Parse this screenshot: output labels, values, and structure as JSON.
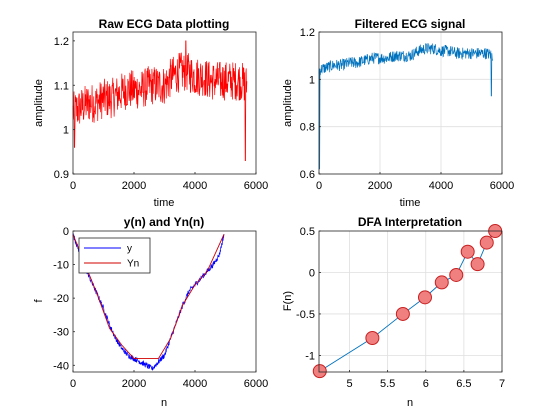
{
  "chart_data": [
    {
      "type": "line",
      "title": "Raw ECG Data plotting",
      "xlabel": "time",
      "ylabel": "amplitude",
      "xlim": [
        0,
        6000
      ],
      "ylim": [
        0.9,
        1.22
      ],
      "xticks": [
        0,
        2000,
        4000,
        6000
      ],
      "yticks": [
        0.9,
        1,
        1.1,
        1.2
      ],
      "ytick_labels": [
        "0.9",
        "1",
        "1.1",
        "1.2"
      ],
      "grid": false,
      "color": "#ff0000",
      "series": [
        {
          "x": [
            0,
            250,
            500,
            750,
            1000,
            1250,
            1500,
            1750,
            2000,
            2250,
            2500,
            2750,
            3000,
            3250,
            3500,
            3750,
            4000,
            4250,
            4500,
            4750,
            5000,
            5250,
            5500,
            5700
          ],
          "values": [
            1.04,
            1.05,
            1.06,
            1.06,
            1.07,
            1.07,
            1.08,
            1.09,
            1.09,
            1.09,
            1.1,
            1.1,
            1.1,
            1.12,
            1.13,
            1.13,
            1.12,
            1.12,
            1.11,
            1.11,
            1.11,
            1.11,
            1.11,
            1.1
          ],
          "noise": 0.045
        }
      ],
      "spikes": [
        {
          "x": 50,
          "y": 0.96
        },
        {
          "x": 3700,
          "y": 1.2
        },
        {
          "x": 5650,
          "y": 0.93
        }
      ]
    },
    {
      "type": "line",
      "title": "Filtered ECG signal",
      "xlabel": "time",
      "ylabel": "amplitude",
      "xlim": [
        0,
        6000
      ],
      "ylim": [
        0.6,
        1.2
      ],
      "xticks": [
        0,
        2000,
        4000,
        6000
      ],
      "yticks": [
        0.6,
        0.8,
        1,
        1.2
      ],
      "ytick_labels": [
        "0.6",
        "0.8",
        "1",
        "1.2"
      ],
      "grid": true,
      "color": "#0072bd",
      "series": [
        {
          "x": [
            0,
            250,
            500,
            750,
            1000,
            1250,
            1500,
            1750,
            2000,
            2250,
            2500,
            2750,
            3000,
            3250,
            3500,
            3750,
            4000,
            4250,
            4500,
            4750,
            5000,
            5250,
            5500,
            5700
          ],
          "values": [
            1.04,
            1.05,
            1.06,
            1.06,
            1.07,
            1.07,
            1.08,
            1.09,
            1.09,
            1.09,
            1.1,
            1.1,
            1.1,
            1.12,
            1.13,
            1.13,
            1.12,
            1.12,
            1.11,
            1.11,
            1.11,
            1.11,
            1.11,
            1.1
          ],
          "noise": 0.025
        }
      ],
      "spikes": [
        {
          "x": 20,
          "y": 0.62
        },
        {
          "x": 5650,
          "y": 0.93
        }
      ]
    },
    {
      "type": "line",
      "title": "y(n) and Yn(n)",
      "xlabel": "n",
      "ylabel": "f",
      "xlim": [
        0,
        6000
      ],
      "ylim": [
        -42,
        0
      ],
      "xticks": [
        0,
        2000,
        4000,
        6000
      ],
      "yticks": [
        0,
        -10,
        -20,
        -30,
        -40
      ],
      "ytick_labels": [
        "0",
        "-10",
        "-20",
        "-30",
        "-40"
      ],
      "grid": false,
      "legend": "top-left",
      "series": [
        {
          "name": "y",
          "color": "#0000ff",
          "x": [
            0,
            200,
            400,
            600,
            800,
            1000,
            1200,
            1400,
            1600,
            1800,
            2000,
            2200,
            2400,
            2600,
            2800,
            3000,
            3200,
            3400,
            3600,
            3800,
            4000,
            4200,
            4400,
            4600,
            4800,
            4950
          ],
          "values": [
            -1,
            -6,
            -11,
            -15,
            -19,
            -23,
            -28,
            -32,
            -35,
            -37,
            -38,
            -39,
            -40,
            -41,
            -39,
            -37,
            -32,
            -27,
            -22,
            -18,
            -16,
            -14,
            -12,
            -10,
            -7,
            -1
          ],
          "noise": 0.8
        },
        {
          "name": "Yn",
          "color": "#d00000",
          "x": [
            0,
            400,
            800,
            1200,
            1600,
            2000,
            2400,
            2800,
            3200,
            3600,
            4000,
            4400,
            4950
          ],
          "values": [
            -1,
            -10,
            -19,
            -29,
            -34,
            -38,
            -38,
            -38,
            -32,
            -22,
            -16,
            -12,
            -1
          ]
        }
      ]
    },
    {
      "type": "line",
      "title": "DFA Interpretation",
      "xlabel": "n",
      "ylabel": "F(n)",
      "xlim": [
        4.6,
        7
      ],
      "ylim": [
        -1.2,
        0.5
      ],
      "xticks": [
        5,
        5.5,
        6,
        6.5,
        7
      ],
      "xtick_labels": [
        "5",
        "5.5",
        "6",
        "6.5",
        "7"
      ],
      "yticks": [
        0.5,
        0,
        -0.5,
        -1
      ],
      "ytick_labels": [
        "0.5",
        "0",
        "-0.5",
        "-1"
      ],
      "grid": true,
      "color": "#0072bd",
      "marker_color": "#f08080",
      "series": [
        {
          "x": [
            4.61,
            5.3,
            5.7,
            5.99,
            6.21,
            6.4,
            6.55,
            6.68,
            6.8,
            6.91
          ],
          "values": [
            -1.19,
            -0.79,
            -0.5,
            -0.3,
            -0.12,
            -0.03,
            0.25,
            0.1,
            0.36,
            0.5
          ]
        }
      ]
    }
  ]
}
